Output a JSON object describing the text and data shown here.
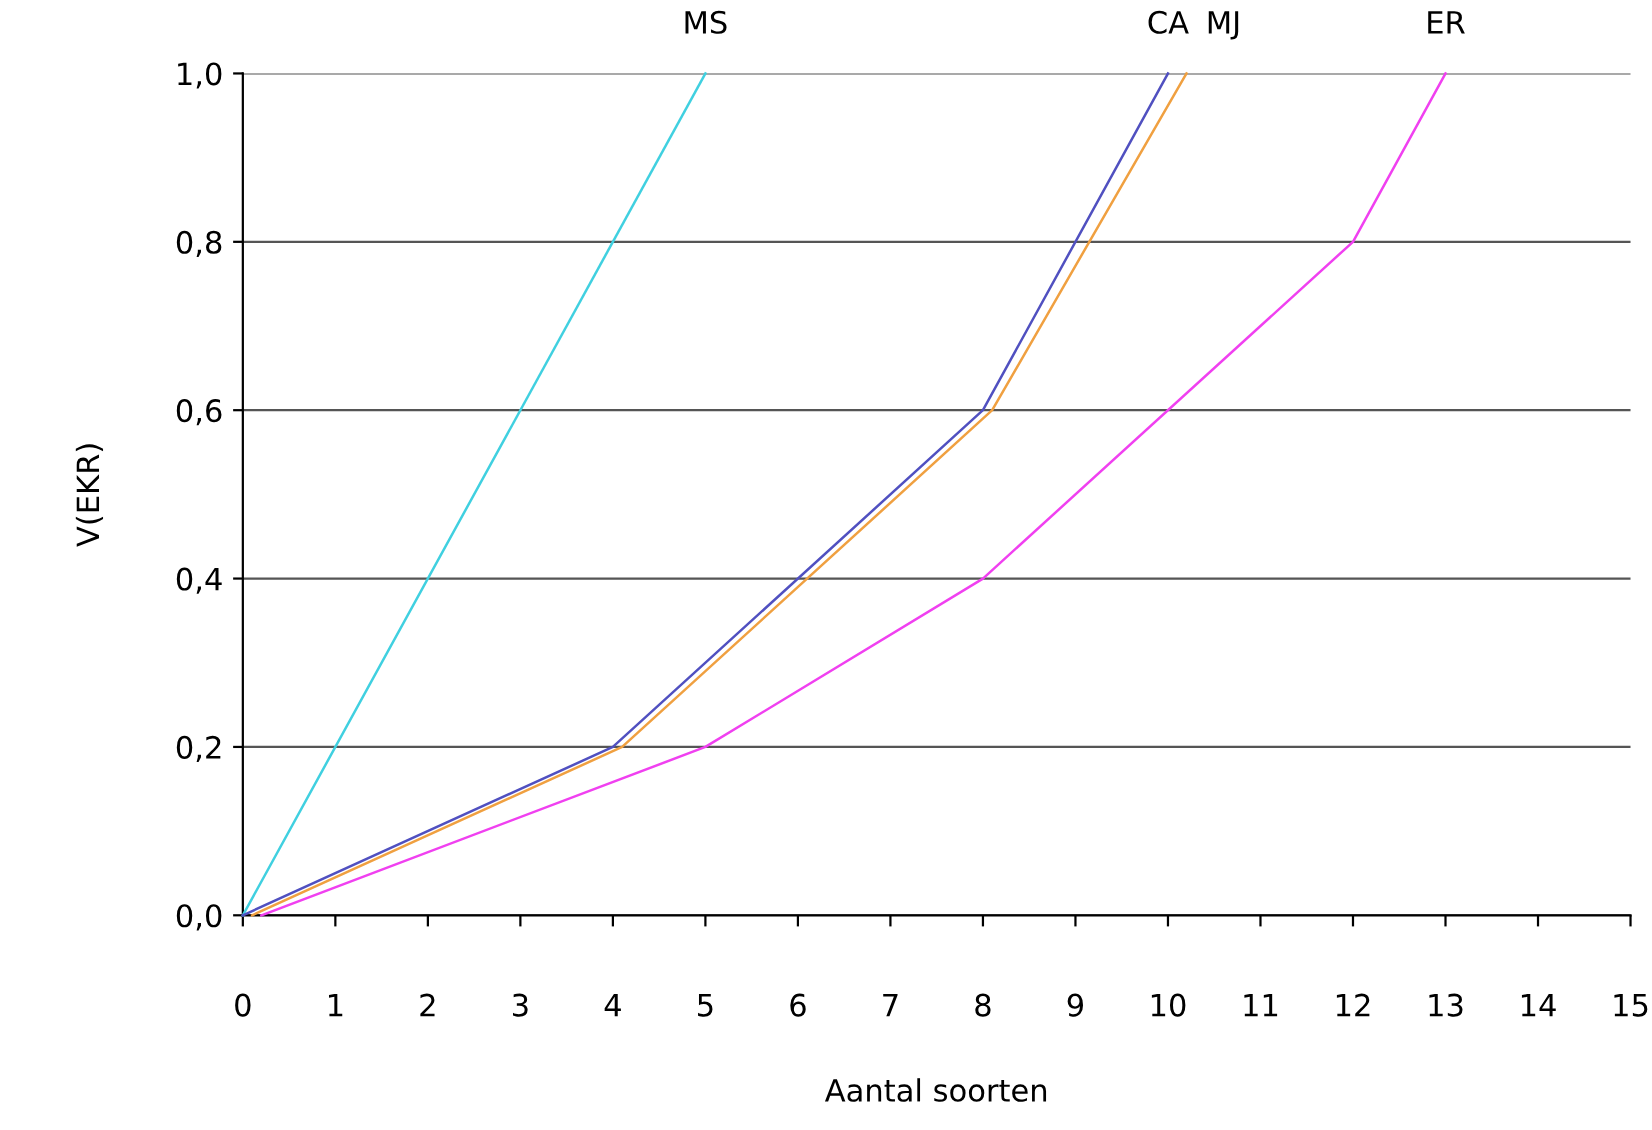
{
  "chart_data": {
    "type": "line",
    "xlabel": "Aantal soorten",
    "ylabel": "V(EKR)",
    "series": [
      {
        "name": "MS",
        "color": "#40d0e0",
        "x": [
          0,
          5
        ],
        "values": [
          0,
          1.0
        ]
      },
      {
        "name": "CA",
        "color": "#5050c0",
        "x": [
          0,
          4,
          8,
          10
        ],
        "values": [
          0,
          0.2,
          0.6,
          1.0
        ]
      },
      {
        "name": "MJ",
        "color": "#f0a040",
        "x": [
          0.1,
          4.1,
          8.1,
          10.2
        ],
        "values": [
          0,
          0.2,
          0.6,
          1.0
        ]
      },
      {
        "name": "ER",
        "color": "#f040f0",
        "x": [
          0.2,
          5,
          8,
          12,
          13
        ],
        "values": [
          0,
          0.2,
          0.4,
          0.8,
          1.0
        ]
      }
    ],
    "xlim": [
      0,
      15
    ],
    "xticks": [
      0,
      1,
      2,
      3,
      4,
      5,
      6,
      7,
      8,
      9,
      10,
      11,
      12,
      13,
      14,
      15
    ],
    "ylim": [
      0,
      1.0
    ],
    "yticks": [
      {
        "value": 0,
        "label": "0,0"
      },
      {
        "value": 0.2,
        "label": "0,2"
      },
      {
        "value": 0.4,
        "label": "0,4"
      },
      {
        "value": 0.6,
        "label": "0,6"
      },
      {
        "value": 0.8,
        "label": "0,8"
      },
      {
        "value": 1.0,
        "label": "1,0"
      }
    ],
    "grid": "y",
    "marker": "none",
    "line_style": "solid"
  }
}
